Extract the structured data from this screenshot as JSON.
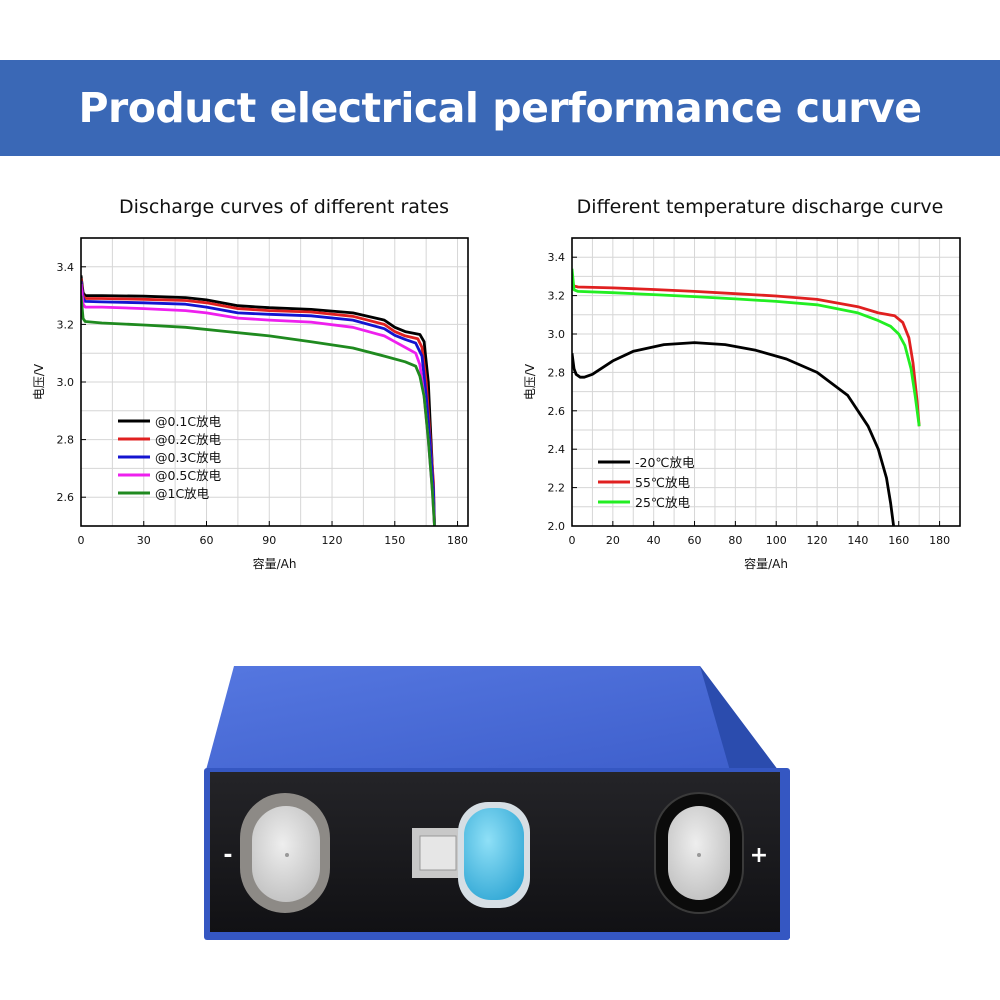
{
  "banner": {
    "title": "Product electrical performance curve"
  },
  "colors": {
    "banner_bg": "#3a68b6"
  },
  "chart_data": [
    {
      "type": "line",
      "title": "Discharge curves of different rates",
      "xlabel": "容量/Ah",
      "ylabel": "电压/V",
      "xlim": [
        0,
        185
      ],
      "ylim": [
        2.5,
        3.5
      ],
      "xticks": [
        0,
        30,
        60,
        90,
        120,
        150,
        180
      ],
      "yticks": [
        2.6,
        2.8,
        3.0,
        3.2,
        3.4
      ],
      "grid": true,
      "legend_position": "bottom-left",
      "series": [
        {
          "name": "@0.1C放电",
          "color": "#000000",
          "points": [
            [
              0,
              3.37
            ],
            [
              1,
              3.31
            ],
            [
              2,
              3.3
            ],
            [
              10,
              3.3
            ],
            [
              30,
              3.298
            ],
            [
              50,
              3.293
            ],
            [
              60,
              3.285
            ],
            [
              75,
              3.265
            ],
            [
              90,
              3.258
            ],
            [
              110,
              3.252
            ],
            [
              130,
              3.24
            ],
            [
              145,
              3.215
            ],
            [
              150,
              3.19
            ],
            [
              155,
              3.175
            ],
            [
              162,
              3.165
            ],
            [
              164,
              3.14
            ],
            [
              166,
              3.0
            ],
            [
              167,
              2.85
            ],
            [
              168,
              2.7
            ],
            [
              169,
              2.5
            ]
          ]
        },
        {
          "name": "@0.2C放电",
          "color": "#e02020",
          "points": [
            [
              0,
              3.36
            ],
            [
              1,
              3.3
            ],
            [
              2,
              3.29
            ],
            [
              10,
              3.29
            ],
            [
              30,
              3.287
            ],
            [
              50,
              3.283
            ],
            [
              60,
              3.275
            ],
            [
              75,
              3.255
            ],
            [
              90,
              3.248
            ],
            [
              110,
              3.243
            ],
            [
              130,
              3.228
            ],
            [
              145,
              3.2
            ],
            [
              150,
              3.175
            ],
            [
              155,
              3.16
            ],
            [
              161,
              3.15
            ],
            [
              163,
              3.12
            ],
            [
              165,
              3.0
            ],
            [
              167,
              2.8
            ],
            [
              168.5,
              2.65
            ],
            [
              169,
              2.5
            ]
          ]
        },
        {
          "name": "@0.3C放电",
          "color": "#1414d0",
          "points": [
            [
              0,
              3.35
            ],
            [
              1,
              3.29
            ],
            [
              2,
              3.28
            ],
            [
              10,
              3.278
            ],
            [
              30,
              3.275
            ],
            [
              50,
              3.27
            ],
            [
              60,
              3.26
            ],
            [
              75,
              3.24
            ],
            [
              90,
              3.235
            ],
            [
              110,
              3.23
            ],
            [
              130,
              3.215
            ],
            [
              145,
              3.185
            ],
            [
              150,
              3.162
            ],
            [
              155,
              3.148
            ],
            [
              160,
              3.135
            ],
            [
              163,
              3.09
            ],
            [
              165,
              2.95
            ],
            [
              167,
              2.78
            ],
            [
              168.5,
              2.62
            ],
            [
              169,
              2.5
            ]
          ]
        },
        {
          "name": "@0.5C放电",
          "color": "#ee20ee",
          "points": [
            [
              0,
              3.34
            ],
            [
              1,
              3.27
            ],
            [
              2,
              3.26
            ],
            [
              10,
              3.26
            ],
            [
              30,
              3.255
            ],
            [
              50,
              3.248
            ],
            [
              60,
              3.24
            ],
            [
              75,
              3.222
            ],
            [
              90,
              3.215
            ],
            [
              110,
              3.208
            ],
            [
              130,
              3.19
            ],
            [
              145,
              3.16
            ],
            [
              150,
              3.14
            ],
            [
              155,
              3.12
            ],
            [
              160,
              3.1
            ],
            [
              162,
              3.06
            ],
            [
              164,
              2.95
            ],
            [
              166,
              2.8
            ],
            [
              168,
              2.62
            ],
            [
              169,
              2.5
            ]
          ]
        },
        {
          "name": "@1C放电",
          "color": "#1f8a1f",
          "points": [
            [
              0,
              3.3
            ],
            [
              1,
              3.22
            ],
            [
              2,
              3.21
            ],
            [
              10,
              3.205
            ],
            [
              30,
              3.198
            ],
            [
              50,
              3.19
            ],
            [
              70,
              3.175
            ],
            [
              90,
              3.16
            ],
            [
              110,
              3.14
            ],
            [
              130,
              3.118
            ],
            [
              145,
              3.09
            ],
            [
              155,
              3.07
            ],
            [
              160,
              3.055
            ],
            [
              162,
              3.02
            ],
            [
              164,
              2.95
            ],
            [
              166,
              2.8
            ],
            [
              168,
              2.62
            ],
            [
              169,
              2.5
            ]
          ]
        }
      ]
    },
    {
      "type": "line",
      "title": "Different temperature discharge curve",
      "xlabel": "容量/Ah",
      "ylabel": "电压/V",
      "xlim": [
        0,
        190
      ],
      "ylim": [
        2.0,
        3.5
      ],
      "xticks": [
        0,
        20,
        40,
        60,
        80,
        100,
        120,
        140,
        160,
        180
      ],
      "yticks": [
        2.0,
        2.2,
        2.4,
        2.6,
        2.8,
        3.0,
        3.2,
        3.4
      ],
      "grid": true,
      "legend_position": "bottom-left",
      "series": [
        {
          "name": "-20℃放电",
          "color": "#000000",
          "points": [
            [
              0,
              2.9
            ],
            [
              1,
              2.82
            ],
            [
              2,
              2.79
            ],
            [
              4,
              2.775
            ],
            [
              6,
              2.775
            ],
            [
              10,
              2.79
            ],
            [
              20,
              2.86
            ],
            [
              30,
              2.91
            ],
            [
              45,
              2.945
            ],
            [
              60,
              2.955
            ],
            [
              75,
              2.945
            ],
            [
              90,
              2.915
            ],
            [
              105,
              2.87
            ],
            [
              120,
              2.8
            ],
            [
              135,
              2.68
            ],
            [
              145,
              2.52
            ],
            [
              150,
              2.4
            ],
            [
              154,
              2.25
            ],
            [
              156,
              2.12
            ],
            [
              157.5,
              2.0
            ]
          ]
        },
        {
          "name": "55℃放电",
          "color": "#e02020",
          "points": [
            [
              0,
              3.27
            ],
            [
              1,
              3.25
            ],
            [
              3,
              3.245
            ],
            [
              20,
              3.24
            ],
            [
              40,
              3.232
            ],
            [
              60,
              3.222
            ],
            [
              80,
              3.21
            ],
            [
              100,
              3.198
            ],
            [
              120,
              3.18
            ],
            [
              140,
              3.142
            ],
            [
              150,
              3.11
            ],
            [
              158,
              3.095
            ],
            [
              162,
              3.06
            ],
            [
              165,
              2.98
            ],
            [
              167,
              2.85
            ],
            [
              169,
              2.65
            ],
            [
              170,
              2.52
            ]
          ]
        },
        {
          "name": "25℃放电",
          "color": "#22ee22",
          "points": [
            [
              0,
              3.34
            ],
            [
              1,
              3.23
            ],
            [
              3,
              3.222
            ],
            [
              20,
              3.215
            ],
            [
              40,
              3.205
            ],
            [
              60,
              3.195
            ],
            [
              80,
              3.183
            ],
            [
              100,
              3.17
            ],
            [
              120,
              3.152
            ],
            [
              140,
              3.11
            ],
            [
              150,
              3.07
            ],
            [
              156,
              3.04
            ],
            [
              160,
              3.0
            ],
            [
              163,
              2.94
            ],
            [
              166,
              2.82
            ],
            [
              168,
              2.68
            ],
            [
              170,
              2.52
            ]
          ]
        }
      ]
    }
  ],
  "battery": {
    "negative_label": "-",
    "positive_label": "+",
    "colors": {
      "body_top": "#4e6fd8",
      "body_side": "#2f52b8",
      "face": "#1c1c1e",
      "vent": "#5ec8ea",
      "terminal": "#d9d9d9"
    }
  }
}
